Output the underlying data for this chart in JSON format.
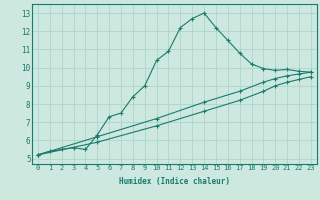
{
  "title": "",
  "xlabel": "Humidex (Indice chaleur)",
  "ylabel": "",
  "xlim": [
    -0.5,
    23.5
  ],
  "ylim": [
    4.7,
    13.5
  ],
  "xticks": [
    0,
    1,
    2,
    3,
    4,
    5,
    6,
    7,
    8,
    9,
    10,
    11,
    12,
    13,
    14,
    15,
    16,
    17,
    18,
    19,
    20,
    21,
    22,
    23
  ],
  "yticks": [
    5,
    6,
    7,
    8,
    9,
    10,
    11,
    12,
    13
  ],
  "bg_color": "#cce8df",
  "line_color": "#1a7a6e",
  "grid_color": "#aed4ca",
  "line1_x": [
    0,
    1,
    2,
    3,
    4,
    5,
    6,
    7,
    8,
    9,
    10,
    11,
    12,
    13,
    14,
    15,
    16,
    17,
    18,
    19,
    20,
    21,
    22,
    23
  ],
  "line1_y": [
    5.2,
    5.4,
    5.5,
    5.6,
    5.5,
    6.3,
    7.3,
    7.5,
    8.4,
    9.0,
    10.4,
    10.9,
    12.2,
    12.7,
    13.0,
    12.2,
    11.5,
    10.8,
    10.2,
    9.95,
    9.85,
    9.9,
    9.8,
    9.75
  ],
  "line2_x": [
    0,
    5,
    10,
    14,
    17,
    19,
    20,
    21,
    22,
    23
  ],
  "line2_y": [
    5.2,
    6.2,
    7.2,
    8.1,
    8.7,
    9.2,
    9.4,
    9.55,
    9.65,
    9.75
  ],
  "line3_x": [
    0,
    5,
    10,
    14,
    17,
    19,
    20,
    21,
    22,
    23
  ],
  "line3_y": [
    5.2,
    5.9,
    6.8,
    7.6,
    8.2,
    8.7,
    9.0,
    9.2,
    9.35,
    9.5
  ],
  "figsize": [
    3.2,
    2.0
  ],
  "dpi": 100
}
